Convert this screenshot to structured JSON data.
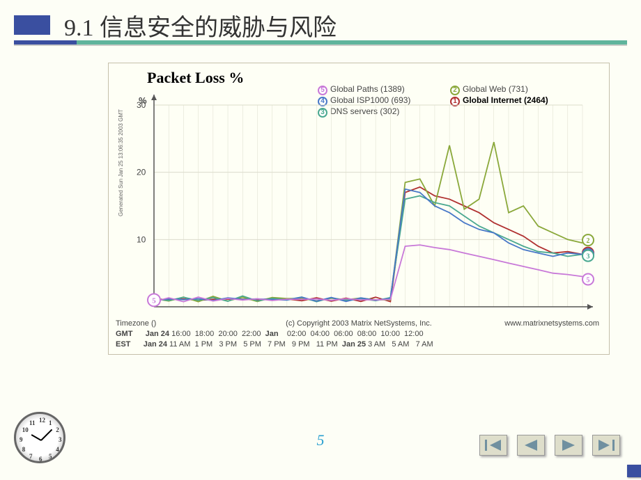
{
  "slide": {
    "title": "9.1  信息安全的威胁与风险",
    "page_number": "5",
    "background_color": "#fdfef6",
    "accent_color": "#3a4fa0",
    "underline_color": "#5fb49c"
  },
  "chart": {
    "type": "line",
    "title": "Packet Loss %",
    "title_fontsize": 22,
    "y_axis_label": "%",
    "ylim": [
      0,
      30
    ],
    "yticks": [
      0,
      10,
      20,
      30
    ],
    "background_color": "#fefff5",
    "grid_color": "#dcdccc",
    "axis_color": "#555555",
    "side_label": "Generated Sun Jan 25 13:06:35 2003 GMT",
    "copyright": "(c) Copyright 2003 Matrix NetSystems, Inc.",
    "website": "www.matrixnetsystems.com",
    "timezone_label": "Timezone ()",
    "row_labels": [
      "GMT",
      "EST"
    ],
    "x_labels_gmt": [
      "Jan 24",
      "16:00",
      "18:00",
      "20:00",
      "22:00",
      "Jan",
      "02:00",
      "04:00",
      "06:00",
      "08:00",
      "10:00",
      "12:00"
    ],
    "x_labels_est": [
      "Jan 24",
      "11 AM",
      "1 PM",
      "3 PM",
      "5 PM",
      "7 PM",
      "9 PM",
      "11 PM",
      "Jan 25",
      "3 AM",
      "5 AM",
      "7 AM"
    ],
    "series": [
      {
        "id": 1,
        "name": "Global Internet (2464)",
        "color": "#b03030",
        "bold": true,
        "data": [
          1.0,
          1.2,
          1.0,
          1.1,
          1.0,
          1.2,
          1.1,
          1.0,
          1.3,
          1.1,
          1.0,
          1.2,
          1.0,
          1.1,
          1.0,
          1.2,
          1.0,
          17.0,
          17.8,
          16.5,
          16.0,
          15.0,
          14.0,
          12.5,
          11.5,
          10.5,
          9.0,
          8.0,
          8.2,
          7.8
        ]
      },
      {
        "id": 2,
        "name": "Global Web (731)",
        "color": "#8aa83a",
        "bold": false,
        "data": [
          1.0,
          1.1,
          1.2,
          1.0,
          1.3,
          1.1,
          1.2,
          1.0,
          1.2,
          1.4,
          1.1,
          1.0,
          1.2,
          1.1,
          1.3,
          1.0,
          1.1,
          18.5,
          19.0,
          15.0,
          24.0,
          14.5,
          16.0,
          24.5,
          14.0,
          15.0,
          12.0,
          11.0,
          10.0,
          9.5
        ]
      },
      {
        "id": 3,
        "name": "DNS servers (302)",
        "color": "#4aa890",
        "bold": false,
        "data": [
          1.2,
          1.0,
          1.3,
          1.1,
          1.2,
          1.0,
          1.4,
          1.1,
          1.0,
          1.3,
          1.2,
          1.0,
          1.1,
          1.2,
          1.0,
          1.1,
          1.2,
          16.0,
          16.5,
          15.5,
          15.0,
          13.5,
          12.0,
          11.0,
          10.0,
          9.0,
          8.2,
          8.0,
          7.5,
          7.8
        ]
      },
      {
        "id": 4,
        "name": "Global ISP1000 (693)",
        "color": "#4878c8",
        "bold": false,
        "data": [
          1.1,
          1.0,
          1.2,
          1.1,
          1.0,
          1.3,
          1.1,
          1.2,
          1.0,
          1.1,
          1.3,
          1.0,
          1.2,
          1.0,
          1.1,
          1.2,
          1.0,
          17.5,
          17.0,
          15.0,
          14.0,
          12.5,
          11.5,
          11.0,
          9.5,
          8.5,
          8.0,
          7.5,
          8.0,
          7.8
        ]
      },
      {
        "id": 5,
        "name": "Global Paths (1389)",
        "color": "#c878d8",
        "bold": false,
        "data": [
          1.0,
          1.1,
          1.0,
          1.2,
          1.1,
          1.0,
          1.2,
          1.0,
          1.1,
          1.0,
          1.2,
          1.1,
          1.0,
          1.2,
          1.0,
          1.1,
          1.0,
          9.0,
          9.2,
          8.8,
          8.5,
          8.0,
          7.5,
          7.0,
          6.5,
          6.0,
          5.5,
          5.0,
          4.8,
          4.5
        ]
      }
    ],
    "legend_layout": [
      {
        "col": 0,
        "items": [
          5,
          4,
          3
        ]
      },
      {
        "col": 1,
        "items": [
          2,
          1
        ]
      }
    ],
    "start_marker": {
      "series": 5,
      "x_index": 0
    },
    "end_markers": [
      {
        "series": 2,
        "y": 9.5
      },
      {
        "series": 1,
        "y": 7.8
      },
      {
        "series": 4,
        "y": 7.8
      },
      {
        "series": 3,
        "y": 7.8
      },
      {
        "series": 5,
        "y": 4.5
      }
    ]
  },
  "nav": {
    "buttons": [
      "first",
      "prev",
      "next",
      "last"
    ],
    "arrow_color": "#7090a0"
  },
  "clock": {
    "numbers": [
      "12",
      "1",
      "2",
      "3",
      "4",
      "5",
      "6",
      "7",
      "8",
      "9",
      "10",
      "11"
    ]
  }
}
